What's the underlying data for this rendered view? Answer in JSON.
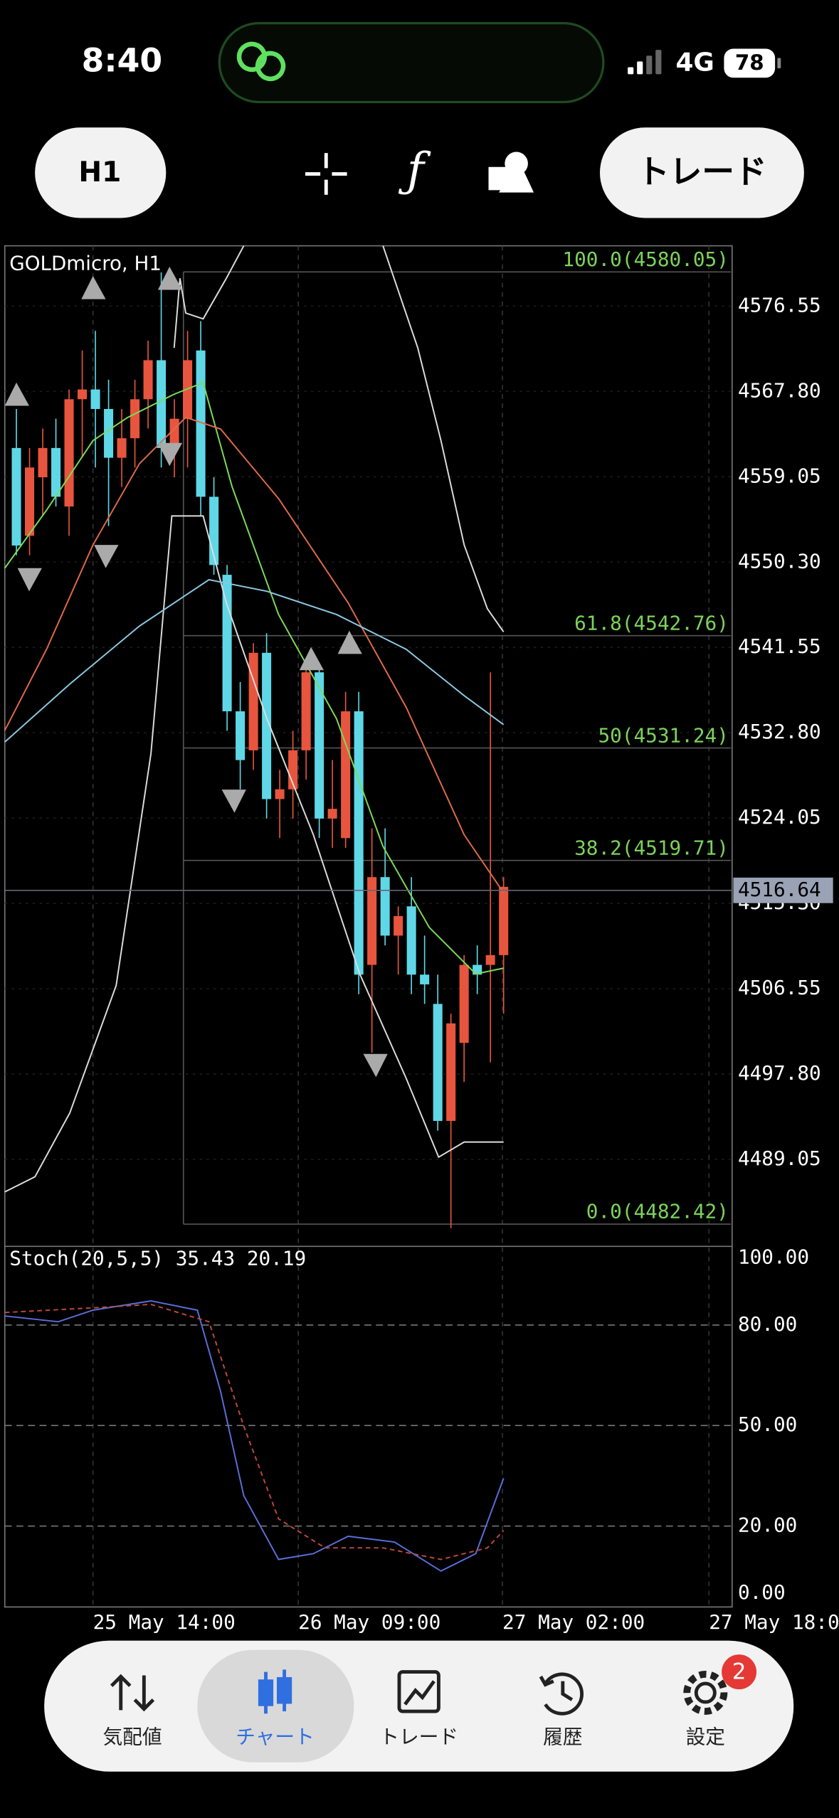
{
  "status_bar": {
    "time": "8:40",
    "network": "4G",
    "battery": "78"
  },
  "toolbar": {
    "timeframe": "H1",
    "trade_button": "トレード"
  },
  "chart": {
    "symbol": "GOLDmicro, H1",
    "price_ticks": [
      {
        "value": 4576.55,
        "label": "4576.55"
      },
      {
        "value": 4567.8,
        "label": "4567.80"
      },
      {
        "value": 4559.05,
        "label": "4559.05"
      },
      {
        "value": 4550.3,
        "label": "4550.30"
      },
      {
        "value": 4541.55,
        "label": "4541.55"
      },
      {
        "value": 4532.8,
        "label": "4532.80"
      },
      {
        "value": 4524.05,
        "label": "4524.05"
      },
      {
        "value": 4515.3,
        "label": "4515.30"
      },
      {
        "value": 4506.55,
        "label": "4506.55"
      },
      {
        "value": 4497.8,
        "label": "4497.80"
      },
      {
        "value": 4489.05,
        "label": "4489.05"
      }
    ],
    "current_price": 4516.64,
    "fib_levels": [
      {
        "label": "100.0(4580.05)",
        "price": 4580.05
      },
      {
        "label": "61.8(4542.76)",
        "price": 4542.76
      },
      {
        "label": "50(4531.24)",
        "price": 4531.24
      },
      {
        "label": "38.2(4519.71)",
        "price": 4519.71
      },
      {
        "label": "0.0(4482.42)",
        "price": 4482.42
      }
    ],
    "candles": [
      [
        4562,
        4566,
        4551,
        4552
      ],
      [
        4553,
        4562,
        4551,
        4560
      ],
      [
        4559,
        4564,
        4555,
        4562
      ],
      [
        4562,
        4565,
        4556,
        4557
      ],
      [
        4556,
        4568,
        4553,
        4567
      ],
      [
        4567,
        4572,
        4561,
        4568
      ],
      [
        4568,
        4574,
        4560,
        4566
      ],
      [
        4566,
        4569,
        4554,
        4561
      ],
      [
        4561,
        4566,
        4558,
        4563
      ],
      [
        4563,
        4569,
        4560,
        4567
      ],
      [
        4567,
        4573,
        4564,
        4571
      ],
      [
        4571,
        4580,
        4560,
        4562
      ],
      [
        4562,
        4567,
        4559,
        4565
      ],
      [
        4565,
        4574,
        4560,
        4571
      ],
      [
        4572,
        4575,
        4555,
        4557
      ],
      [
        4557,
        4559,
        4549,
        4550
      ],
      [
        4549,
        4550,
        4533,
        4535
      ],
      [
        4535,
        4538,
        4527,
        4530
      ],
      [
        4531,
        4542,
        4529,
        4541
      ],
      [
        4541,
        4543,
        4524,
        4526
      ],
      [
        4526,
        4529,
        4522,
        4527
      ],
      [
        4527,
        4533,
        4524,
        4531
      ],
      [
        4531,
        4540,
        4528,
        4539
      ],
      [
        4539,
        4540,
        4522,
        4524
      ],
      [
        4524,
        4530,
        4521,
        4525
      ],
      [
        4522,
        4537,
        4521,
        4535
      ],
      [
        4535,
        4537,
        4506,
        4508
      ],
      [
        4509,
        4523,
        4500,
        4518
      ],
      [
        4518,
        4523,
        4511,
        4512
      ],
      [
        4512,
        4515,
        4508,
        4514
      ],
      [
        4515,
        4518,
        4506,
        4508
      ],
      [
        4508,
        4512,
        4505,
        4507
      ],
      [
        4505,
        4508,
        4492,
        4493
      ],
      [
        4493,
        4504,
        4482,
        4503
      ],
      [
        4501,
        4510,
        4497,
        4509
      ],
      [
        4509,
        4511,
        4506,
        4508
      ],
      [
        4509,
        4539,
        4499,
        4510
      ],
      [
        4510,
        4518,
        4504,
        4517
      ]
    ],
    "stochastic": {
      "label": "Stoch(20,5,5) 35.43 20.19",
      "ticks": [
        {
          "value": 100,
          "label": "100.00"
        },
        {
          "value": 80,
          "label": "80.00"
        },
        {
          "value": 50,
          "label": "50.00"
        },
        {
          "value": 20,
          "label": "20.00"
        },
        {
          "value": 0,
          "label": "0.00"
        }
      ]
    },
    "time_labels": [
      "25 May 14:00",
      "26 May 09:00",
      "27 May 02:00",
      "27 May 18:00"
    ]
  },
  "nav": {
    "items": [
      "気配値",
      "チャート",
      "トレード",
      "履歴",
      "設定"
    ],
    "badge": "2"
  }
}
